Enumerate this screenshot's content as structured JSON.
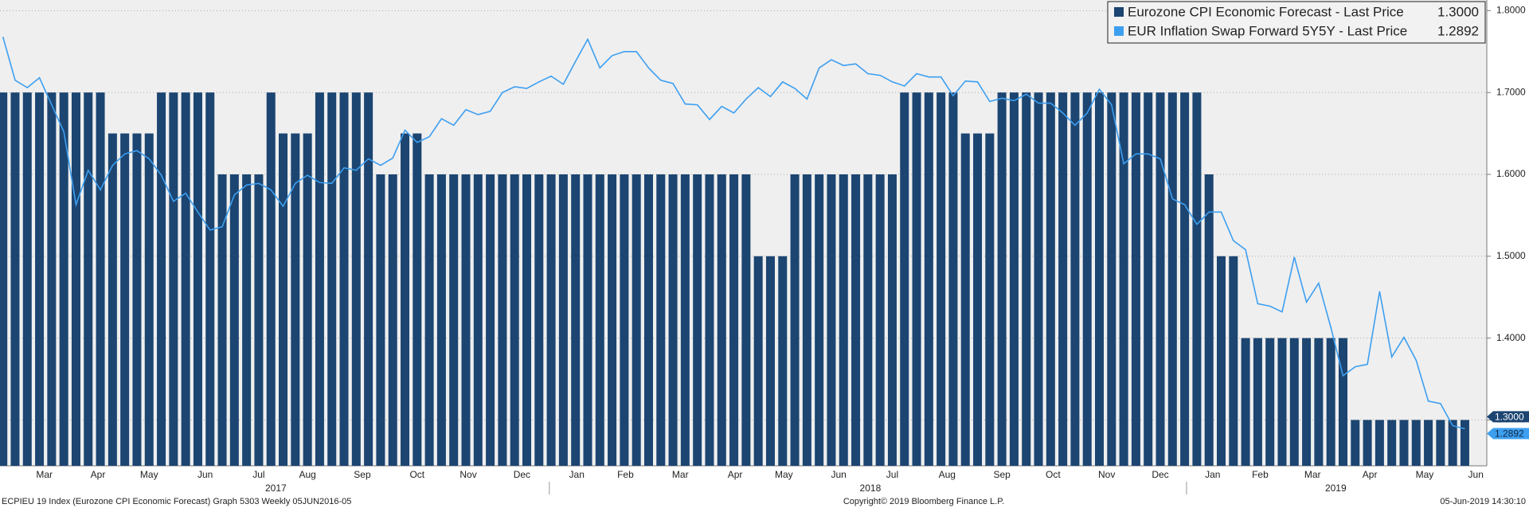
{
  "chart_data": {
    "type": "bar_line",
    "series": [
      {
        "name": "Eurozone CPI Economic Forecast - Last Price",
        "type": "bar",
        "color": "#1c4571",
        "last_price_label": "1.3000",
        "values": [
          1.7,
          1.7,
          1.7,
          1.7,
          1.7,
          1.7,
          1.7,
          1.7,
          1.7,
          1.65,
          1.65,
          1.65,
          1.65,
          1.7,
          1.7,
          1.7,
          1.7,
          1.7,
          1.6,
          1.6,
          1.6,
          1.6,
          1.7,
          1.65,
          1.65,
          1.65,
          1.7,
          1.7,
          1.7,
          1.7,
          1.7,
          1.6,
          1.6,
          1.65,
          1.65,
          1.6,
          1.6,
          1.6,
          1.6,
          1.6,
          1.6,
          1.6,
          1.6,
          1.6,
          1.6,
          1.6,
          1.6,
          1.6,
          1.6,
          1.6,
          1.6,
          1.6,
          1.6,
          1.6,
          1.6,
          1.6,
          1.6,
          1.6,
          1.6,
          1.6,
          1.6,
          1.6,
          1.5,
          1.5,
          1.5,
          1.6,
          1.6,
          1.6,
          1.6,
          1.6,
          1.6,
          1.6,
          1.6,
          1.6,
          1.7,
          1.7,
          1.7,
          1.7,
          1.7,
          1.65,
          1.65,
          1.65,
          1.7,
          1.7,
          1.7,
          1.7,
          1.7,
          1.7,
          1.7,
          1.7,
          1.7,
          1.7,
          1.7,
          1.7,
          1.7,
          1.7,
          1.7,
          1.7,
          1.7,
          1.6,
          1.5,
          1.5,
          1.4,
          1.4,
          1.4,
          1.4,
          1.4,
          1.4,
          1.4,
          1.4,
          1.4,
          1.3,
          1.3,
          1.3,
          1.3,
          1.3,
          1.3,
          1.3,
          1.3,
          1.3,
          1.3
        ]
      },
      {
        "name": "EUR Inflation Swap Forward 5Y5Y - Last Price",
        "type": "line",
        "color": "#3d9ff0",
        "last_price_label": "1.2892",
        "values": [
          1.768,
          1.715,
          1.706,
          1.718,
          1.685,
          1.652,
          1.563,
          1.605,
          1.581,
          1.611,
          1.625,
          1.629,
          1.619,
          1.599,
          1.567,
          1.577,
          1.554,
          1.532,
          1.536,
          1.575,
          1.587,
          1.589,
          1.581,
          1.561,
          1.589,
          1.599,
          1.59,
          1.589,
          1.608,
          1.605,
          1.619,
          1.611,
          1.62,
          1.654,
          1.639,
          1.646,
          1.668,
          1.66,
          1.679,
          1.673,
          1.677,
          1.7,
          1.707,
          1.705,
          1.713,
          1.72,
          1.71,
          1.738,
          1.765,
          1.73,
          1.745,
          1.75,
          1.75,
          1.73,
          1.715,
          1.711,
          1.686,
          1.685,
          1.667,
          1.683,
          1.675,
          1.692,
          1.706,
          1.695,
          1.713,
          1.705,
          1.692,
          1.73,
          1.74,
          1.733,
          1.735,
          1.723,
          1.721,
          1.713,
          1.708,
          1.723,
          1.719,
          1.719,
          1.696,
          1.714,
          1.713,
          1.689,
          1.693,
          1.69,
          1.698,
          1.687,
          1.687,
          1.675,
          1.66,
          1.675,
          1.704,
          1.685,
          1.613,
          1.625,
          1.625,
          1.619,
          1.57,
          1.563,
          1.539,
          1.554,
          1.554,
          1.519,
          1.508,
          1.442,
          1.439,
          1.432,
          1.499,
          1.444,
          1.467,
          1.413,
          1.354,
          1.365,
          1.368,
          1.457,
          1.377,
          1.401,
          1.373,
          1.323,
          1.32,
          1.293,
          1.2892
        ]
      }
    ],
    "xlim": [
      -0.24,
      121.8
    ],
    "xticks": [
      {
        "value": 3.4,
        "label": "Mar"
      },
      {
        "value": 7.8,
        "label": "Apr"
      },
      {
        "value": 12,
        "label": "May"
      },
      {
        "value": 16.6,
        "label": "Jun"
      },
      {
        "value": 21,
        "label": "Jul"
      },
      {
        "value": 25,
        "label": "Aug"
      },
      {
        "value": 29.5,
        "label": "Sep"
      },
      {
        "value": 34,
        "label": "Oct"
      },
      {
        "value": 38.2,
        "label": "Nov"
      },
      {
        "value": 42.6,
        "label": "Dec"
      },
      {
        "value": 47.1,
        "label": "Jan"
      },
      {
        "value": 51.1,
        "label": "Feb"
      },
      {
        "value": 55.6,
        "label": "Mar"
      },
      {
        "value": 60.1,
        "label": "Apr"
      },
      {
        "value": 64.1,
        "label": "May"
      },
      {
        "value": 68.6,
        "label": "Jun"
      },
      {
        "value": 73,
        "label": "Jul"
      },
      {
        "value": 77.5,
        "label": "Aug"
      },
      {
        "value": 82,
        "label": "Sep"
      },
      {
        "value": 86.2,
        "label": "Oct"
      },
      {
        "value": 90.6,
        "label": "Nov"
      },
      {
        "value": 95,
        "label": "Dec"
      },
      {
        "value": 99.3,
        "label": "Jan"
      },
      {
        "value": 103.2,
        "label": "Feb"
      },
      {
        "value": 107.5,
        "label": "Mar"
      },
      {
        "value": 112.2,
        "label": "Apr"
      },
      {
        "value": 116.7,
        "label": "May"
      },
      {
        "value": 120.9,
        "label": "Jun"
      }
    ],
    "year_ticks": [
      {
        "value": 22.4,
        "label": "2017"
      },
      {
        "value": 71.2,
        "label": "2018"
      },
      {
        "value": 109.4,
        "label": "2019"
      }
    ],
    "ylim": [
      1.244,
      1.813
    ],
    "yticks": [
      {
        "value": 1.3,
        "label": "1.3000"
      },
      {
        "value": 1.4,
        "label": "1.4000"
      },
      {
        "value": 1.5,
        "label": "1.5000"
      },
      {
        "value": 1.6,
        "label": "1.6000"
      },
      {
        "value": 1.7,
        "label": "1.7000"
      },
      {
        "value": 1.8,
        "label": "1.8000"
      }
    ],
    "grid": true,
    "legend": "top-right",
    "footer": {
      "left": "ECPIEU 19 Index (Eurozone CPI Economic Forecast) Graph 5303  Weekly 05JUN2016-05",
      "center": "Copyright© 2019 Bloomberg Finance L.P.",
      "right": "05-Jun-2019 14:30:10"
    }
  }
}
